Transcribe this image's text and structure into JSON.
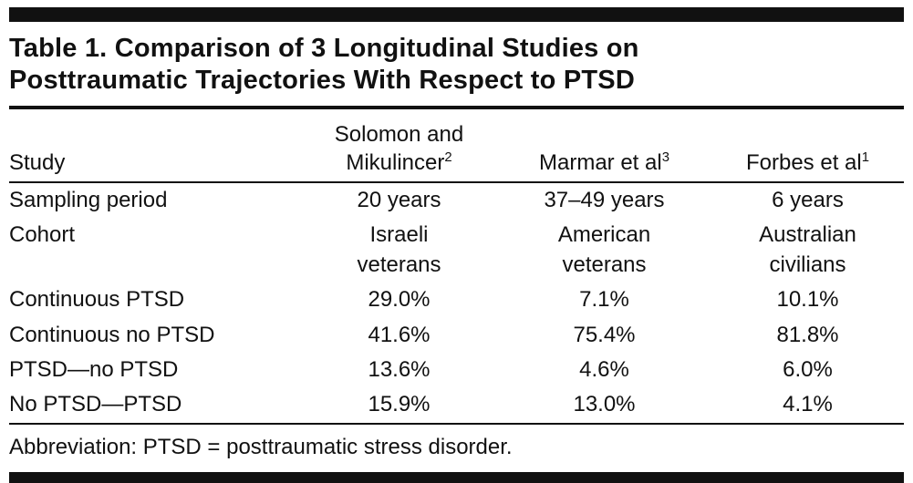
{
  "page": {
    "title": "Table 1. Comparison of 3 Longitudinal Studies on\nPosttraumatic Trajectories With Respect to PTSD",
    "footnote": "Abbreviation: PTSD = posttraumatic stress disorder."
  },
  "table": {
    "columns": [
      {
        "label": "Study",
        "sup": ""
      },
      {
        "label": "Solomon and\nMikulincer",
        "sup": "2"
      },
      {
        "label": "Marmar et al",
        "sup": "3"
      },
      {
        "label": "Forbes et al",
        "sup": "1"
      }
    ],
    "rows": [
      {
        "label": "Sampling period",
        "values": [
          "20 years",
          "37–49 years",
          "6 years"
        ]
      },
      {
        "label": "Cohort",
        "values": [
          "Israeli\nveterans",
          "American\nveterans",
          "Australian\ncivilians"
        ]
      },
      {
        "label": "Continuous PTSD",
        "values": [
          "29.0%",
          "7.1%",
          "10.1%"
        ]
      },
      {
        "label": "Continuous no PTSD",
        "values": [
          "41.6%",
          "75.4%",
          "81.8%"
        ]
      },
      {
        "label": "PTSD—no PTSD",
        "values": [
          "13.6%",
          "4.6%",
          "6.0%"
        ]
      },
      {
        "label": "No PTSD—PTSD",
        "values": [
          "15.9%",
          "13.0%",
          "4.1%"
        ]
      }
    ]
  },
  "colors": {
    "text": "#111111",
    "rule": "#111111",
    "background": "#ffffff"
  }
}
